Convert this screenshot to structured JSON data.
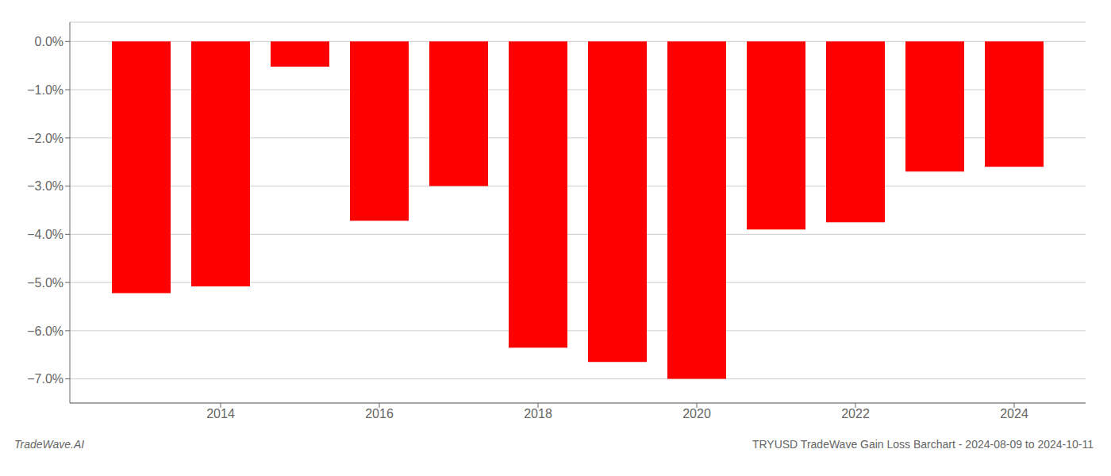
{
  "chart_data": {
    "type": "bar",
    "title": "TRYUSD TradeWave Gain Loss Barchart - 2024-08-09 to 2024-10-11",
    "annotations": [
      "TradeWave.AI"
    ],
    "x": [
      2013,
      2014,
      2015,
      2016,
      2017,
      2018,
      2019,
      2020,
      2021,
      2022,
      2023,
      2024
    ],
    "values": [
      -0.0522,
      -0.0508,
      -0.0052,
      -0.0372,
      -0.03,
      -0.0635,
      -0.0665,
      -0.07,
      -0.039,
      -0.0375,
      -0.027,
      -0.026
    ],
    "color": "#ff0000",
    "xlim": [
      2012.1,
      2024.9
    ],
    "xticks": [
      2014,
      2016,
      2018,
      2020,
      2022,
      2024
    ],
    "ylim": [
      -0.075,
      0.004
    ],
    "yticks": [
      {
        "value": 0.0,
        "label": "0.0%"
      },
      {
        "value": -0.01,
        "label": "−1.0%"
      },
      {
        "value": -0.02,
        "label": "−2.0%"
      },
      {
        "value": -0.03,
        "label": "−3.0%"
      },
      {
        "value": -0.04,
        "label": "−4.0%"
      },
      {
        "value": -0.05,
        "label": "−5.0%"
      },
      {
        "value": -0.06,
        "label": "−6.0%"
      },
      {
        "value": -0.07,
        "label": "−7.0%"
      }
    ],
    "grid": true
  }
}
